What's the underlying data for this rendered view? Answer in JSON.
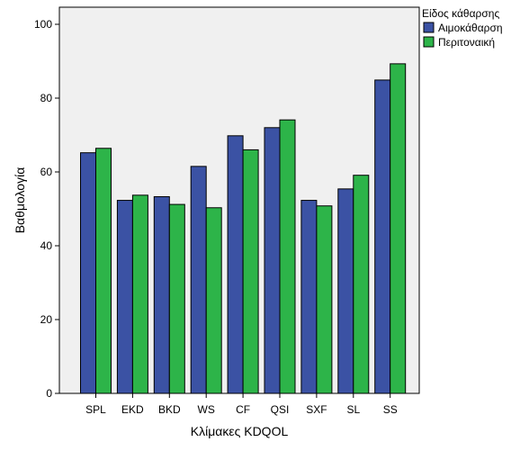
{
  "chart_data": {
    "type": "bar",
    "title": "",
    "xlabel": "Κλίμακες KDQOL",
    "ylabel": "Βαθμολογία",
    "categories": [
      "SPL",
      "EKD",
      "BKD",
      "WS",
      "CF",
      "QSI",
      "SXF",
      "SL",
      "SS"
    ],
    "series": [
      {
        "name": "Αιμοκάθαρση",
        "color": "#3B52A4",
        "values": [
          65.2,
          52.3,
          53.3,
          61.5,
          69.8,
          72.0,
          52.3,
          55.4,
          84.9
        ]
      },
      {
        "name": "Περιτοναική",
        "color": "#2DB449",
        "values": [
          66.4,
          53.7,
          51.2,
          50.3,
          66.0,
          74.1,
          50.8,
          59.1,
          89.3
        ]
      }
    ],
    "yticks": [
      "0",
      "20",
      "40",
      "60",
      "80",
      "100"
    ],
    "ylim": [
      0,
      100
    ],
    "grid": false,
    "plot_background": "#F0F0F0",
    "legend": {
      "title": "Είδος κάθαρσης",
      "placement": "top-right-outside"
    }
  }
}
